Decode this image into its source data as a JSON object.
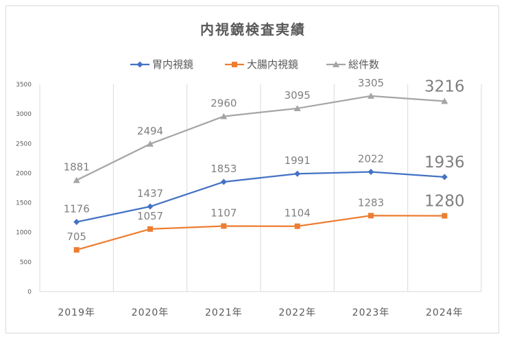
{
  "chart_data": {
    "type": "line",
    "title": "内視鏡検査実績",
    "categories": [
      "2019年",
      "2020年",
      "2021年",
      "2022年",
      "2023年",
      "2024年"
    ],
    "ylim": [
      0,
      3500
    ],
    "yticks": [
      "0",
      "500",
      "1000",
      "1500",
      "2000",
      "2500",
      "3000",
      "3500"
    ],
    "grid": "vertical",
    "legend_position": "top",
    "series": [
      {
        "name": "胃内視鏡",
        "color": "#4472c4",
        "marker": "diamond",
        "values": [
          1176,
          1437,
          1853,
          1991,
          2022,
          1936
        ],
        "labels": [
          "1176",
          "1437",
          "1853",
          "1991",
          "2022",
          "1936"
        ]
      },
      {
        "name": "大腸内視鏡",
        "color": "#ed7d31",
        "marker": "square",
        "values": [
          705,
          1057,
          1107,
          1104,
          1283,
          1280
        ],
        "labels": [
          "705",
          "1057",
          "1107",
          "1104",
          "1283",
          "1280"
        ]
      },
      {
        "name": "総件数",
        "color": "#a5a5a5",
        "marker": "triangle",
        "values": [
          1881,
          2494,
          2960,
          3095,
          3305,
          3216
        ],
        "labels": [
          "1881",
          "2494",
          "2960",
          "3095",
          "3305",
          "3216"
        ]
      }
    ]
  }
}
